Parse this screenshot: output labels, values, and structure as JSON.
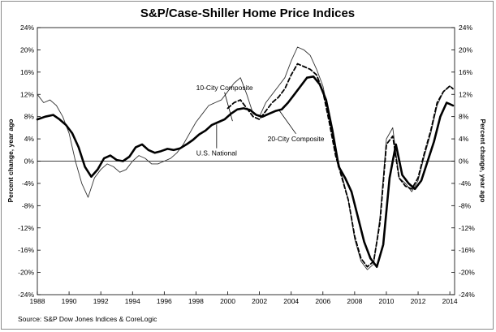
{
  "chart_data": {
    "type": "line",
    "title": "S&P/Case-Shiller Home Price Indices",
    "ylabel_left": "Percent change, year ago",
    "ylabel_right": "Percent change, year ago",
    "source": "Source: S&P Dow Jones Indices & CoreLogic",
    "xlim": [
      1988,
      2014.3
    ],
    "ylim": [
      -24,
      24
    ],
    "x_ticks": [
      "1988",
      "1990",
      "1992",
      "1994",
      "1996",
      "1998",
      "2000",
      "2002",
      "2004",
      "2006",
      "2008",
      "2010",
      "2012",
      "2014"
    ],
    "y_ticks": [
      "24%",
      "20%",
      "16%",
      "12%",
      "8%",
      "4%",
      "0%",
      "-4%",
      "-8%",
      "-12%",
      "-16%",
      "-20%",
      "-24%"
    ],
    "y_tick_values": [
      24,
      20,
      16,
      12,
      8,
      4,
      0,
      -4,
      -8,
      -12,
      -16,
      -20,
      -24
    ],
    "grid": false,
    "zero_line": true,
    "annotations": [
      {
        "text": "10-City Composite",
        "x": 1999.8,
        "y": 12.8,
        "arrow_to": [
          2000.3,
          7.2
        ]
      },
      {
        "text": "20-City Composite",
        "x": 2004.3,
        "y": 3.6,
        "arrow_to": [
          2003.2,
          9.3
        ]
      },
      {
        "text": "U.S. National",
        "x": 1999.3,
        "y": 1.0,
        "arrow_to": [
          1999.3,
          6.6
        ]
      }
    ],
    "series": [
      {
        "name": "U.S. National",
        "style": "thick",
        "x": [
          1988.0,
          1988.5,
          1989.0,
          1989.4,
          1989.8,
          1990.2,
          1990.6,
          1991.0,
          1991.4,
          1991.8,
          1992.2,
          1992.6,
          1993.0,
          1993.4,
          1993.8,
          1994.2,
          1994.6,
          1995.0,
          1995.4,
          1995.8,
          1996.2,
          1996.6,
          1997.0,
          1997.4,
          1997.8,
          1998.2,
          1998.6,
          1999.0,
          1999.4,
          1999.8,
          2000.2,
          2000.6,
          2001.0,
          2001.4,
          2001.8,
          2002.2,
          2002.6,
          2003.0,
          2003.4,
          2003.8,
          2004.2,
          2004.6,
          2005.0,
          2005.4,
          2005.8,
          2006.2,
          2006.6,
          2007.0,
          2007.4,
          2007.8,
          2008.2,
          2008.6,
          2009.0,
          2009.4,
          2009.8,
          2010.2,
          2010.6,
          2011.0,
          2011.4,
          2011.8,
          2012.2,
          2012.6,
          2013.0,
          2013.4,
          2013.8,
          2014.2
        ],
        "y": [
          7.5,
          8.0,
          8.3,
          7.5,
          6.5,
          5.0,
          2.5,
          -1.0,
          -2.8,
          -1.5,
          0.5,
          1.0,
          0.2,
          0.0,
          0.8,
          2.5,
          3.0,
          2.0,
          1.5,
          1.8,
          2.2,
          2.0,
          2.3,
          3.0,
          3.8,
          4.8,
          5.5,
          6.5,
          7.0,
          7.5,
          8.5,
          9.3,
          9.5,
          9.2,
          8.3,
          8.0,
          8.5,
          9.0,
          9.3,
          10.5,
          12.0,
          13.5,
          15.0,
          15.2,
          13.8,
          11.0,
          5.5,
          -1.0,
          -3.0,
          -5.5,
          -10.0,
          -14.5,
          -17.5,
          -19.0,
          -15.0,
          -3.0,
          3.0,
          -2.5,
          -4.0,
          -5.0,
          -3.5,
          0.0,
          3.5,
          8.0,
          10.5,
          10.0
        ]
      },
      {
        "name": "10-City Composite",
        "style": "thin",
        "x": [
          1988.0,
          1988.4,
          1988.8,
          1989.2,
          1989.6,
          1990.0,
          1990.4,
          1990.8,
          1991.2,
          1991.6,
          1992.0,
          1992.4,
          1992.8,
          1993.2,
          1993.6,
          1994.0,
          1994.4,
          1994.8,
          1995.2,
          1995.6,
          1996.0,
          1996.4,
          1996.8,
          1997.2,
          1997.6,
          1998.0,
          1998.4,
          1998.8,
          1999.2,
          1999.6,
          2000.0,
          2000.4,
          2000.8,
          2001.2,
          2001.6,
          2002.0,
          2002.4,
          2002.8,
          2003.2,
          2003.6,
          2004.0,
          2004.4,
          2004.8,
          2005.2,
          2005.6,
          2006.0,
          2006.4,
          2006.8,
          2007.2,
          2007.6,
          2008.0,
          2008.4,
          2008.8,
          2009.2,
          2009.6,
          2010.0,
          2010.4,
          2010.8,
          2011.2,
          2011.6,
          2012.0,
          2012.4,
          2012.8,
          2013.2,
          2013.6,
          2014.0,
          2014.2
        ],
        "y": [
          12.0,
          10.5,
          11.0,
          10.0,
          8.0,
          5.0,
          0.0,
          -4.0,
          -6.5,
          -3.0,
          -1.5,
          -0.5,
          -1.0,
          -2.0,
          -1.5,
          0.0,
          1.0,
          0.5,
          -0.5,
          -0.5,
          0.0,
          0.5,
          1.5,
          3.0,
          5.0,
          7.0,
          8.5,
          10.0,
          10.5,
          11.0,
          12.5,
          14.0,
          15.0,
          12.0,
          8.5,
          8.0,
          10.5,
          12.0,
          13.5,
          15.0,
          18.0,
          20.5,
          20.0,
          19.0,
          16.5,
          13.5,
          8.0,
          2.0,
          -2.5,
          -7.0,
          -14.0,
          -18.0,
          -19.5,
          -18.5,
          -10.0,
          4.0,
          6.0,
          -3.0,
          -4.0,
          -5.5,
          -3.5,
          1.0,
          5.0,
          10.0,
          12.5,
          13.5,
          13.0
        ]
      },
      {
        "name": "20-City Composite",
        "style": "dashed",
        "x": [
          2000.0,
          2000.4,
          2000.8,
          2001.2,
          2001.6,
          2002.0,
          2002.4,
          2002.8,
          2003.2,
          2003.6,
          2004.0,
          2004.4,
          2004.8,
          2005.2,
          2005.6,
          2006.0,
          2006.4,
          2006.8,
          2007.2,
          2007.6,
          2008.0,
          2008.4,
          2008.8,
          2009.2,
          2009.6,
          2010.0,
          2010.4,
          2010.8,
          2011.2,
          2011.6,
          2012.0,
          2012.4,
          2012.8,
          2013.2,
          2013.6,
          2014.0,
          2014.2
        ],
        "y": [
          9.5,
          10.5,
          11.0,
          9.5,
          8.0,
          7.5,
          9.0,
          10.5,
          11.5,
          13.0,
          15.5,
          17.5,
          17.0,
          16.5,
          15.5,
          12.5,
          7.0,
          1.0,
          -3.0,
          -7.0,
          -13.5,
          -17.5,
          -19.0,
          -18.0,
          -11.0,
          3.0,
          4.5,
          -3.0,
          -4.5,
          -5.0,
          -3.0,
          1.5,
          5.5,
          10.5,
          12.5,
          13.5,
          13.0
        ]
      }
    ]
  }
}
